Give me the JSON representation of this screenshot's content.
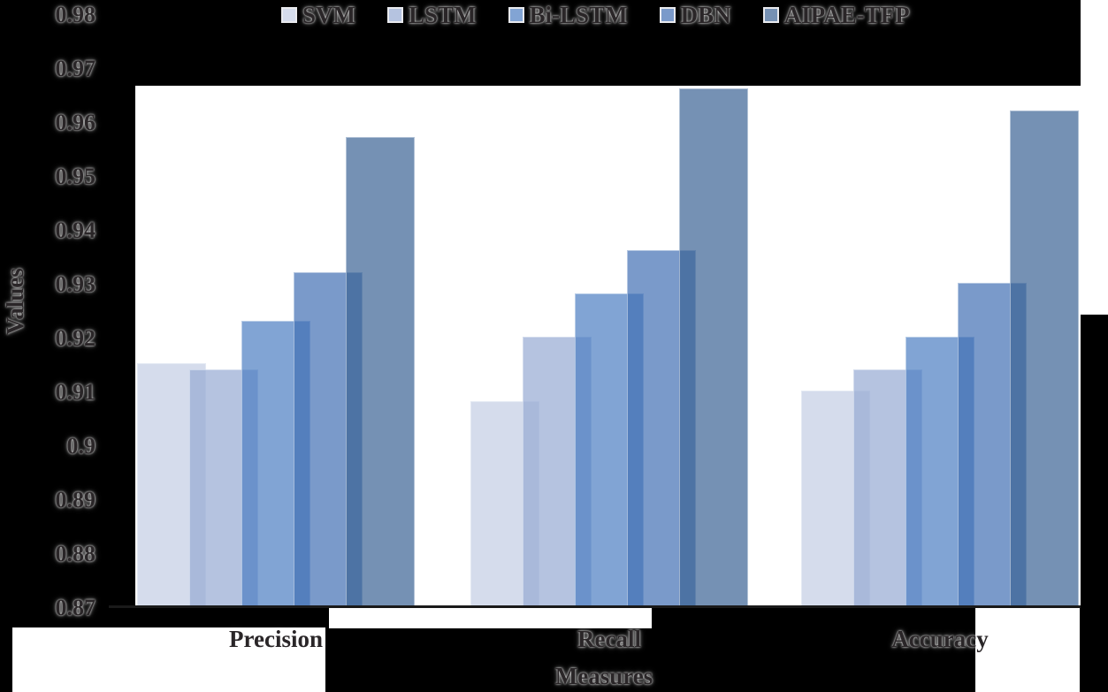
{
  "axis": {
    "y_title": "Values",
    "x_title": "Measures",
    "y_tick_labels": [
      "0.98",
      "0.97",
      "0.96",
      "0.95",
      "0.94",
      "0.93",
      "0.92",
      "0.91",
      "0.9",
      "0.89",
      "0.88",
      "0.87"
    ]
  },
  "chart_data": {
    "type": "bar",
    "title": "",
    "categories": [
      "Precision",
      "Recall",
      "Accuracy"
    ],
    "series": [
      {
        "name": "SVM",
        "values": [
          0.915,
          0.908,
          0.91
        ],
        "legend_color": "#d5dcec",
        "bar_color": "rgba(195,205,228,0.7)"
      },
      {
        "name": "LSTM",
        "values": [
          0.914,
          0.92,
          0.914
        ],
        "legend_color": "#b5c3e0",
        "bar_color": "rgba(149,169,211,0.7)"
      },
      {
        "name": "Bi-LSTM",
        "values": [
          0.923,
          0.928,
          0.92
        ],
        "legend_color": "#82a4d4",
        "bar_color": "rgba(76,125,194,0.7)"
      },
      {
        "name": "DBN",
        "values": [
          0.932,
          0.936,
          0.93
        ],
        "legend_color": "#7b9aca",
        "bar_color": "rgba(66,111,179,0.7)"
      },
      {
        "name": "AIPAE-TFP",
        "values": [
          0.957,
          0.966,
          0.962
        ],
        "legend_color": "#7691b4",
        "bar_color": "rgba(59,98,148,0.7)"
      }
    ],
    "xlabel": "Measures",
    "ylabel": "Values",
    "ylim": [
      0.87,
      0.98
    ],
    "y_tick_step": 0.01,
    "legend_position": "top",
    "grid": false,
    "bar_style": "overlapping semi-transparent"
  }
}
